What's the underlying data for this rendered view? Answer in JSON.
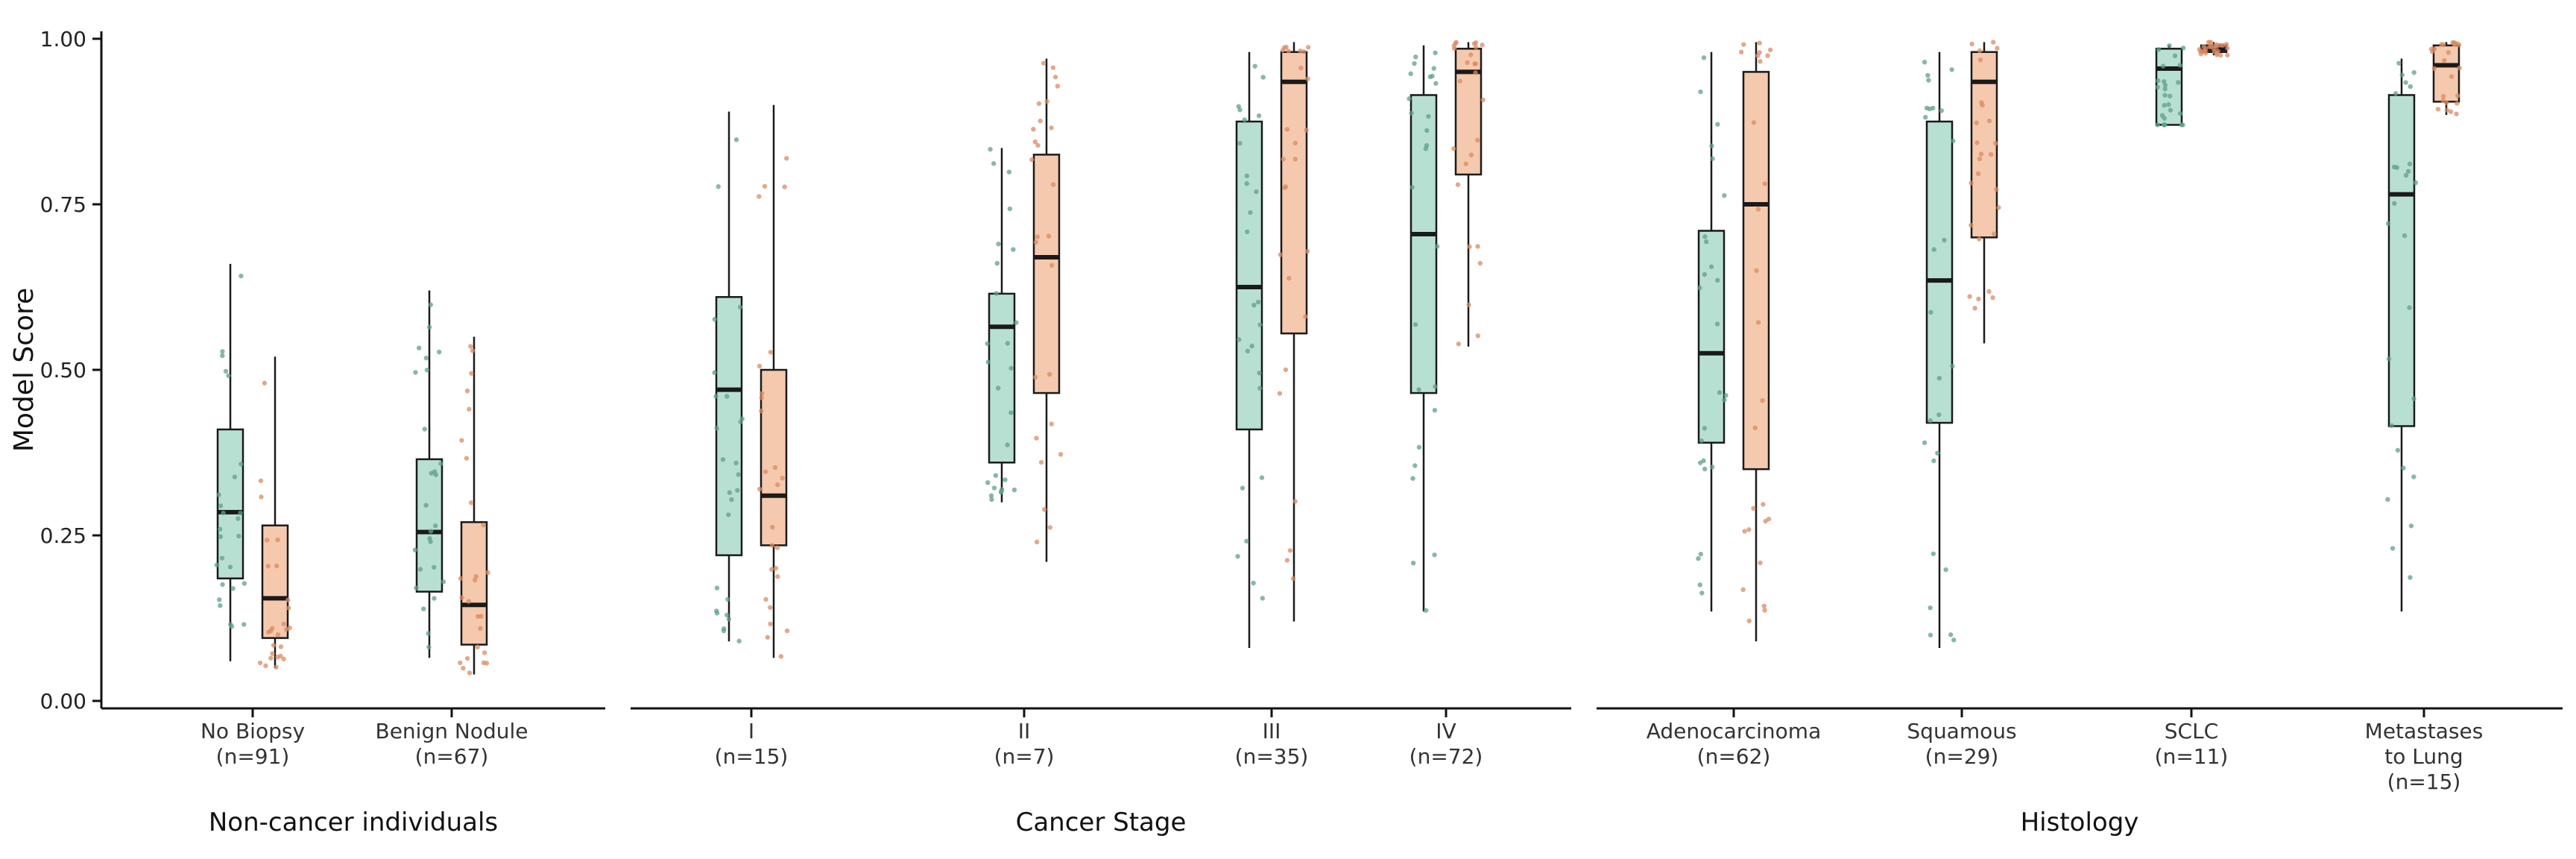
{
  "chart_data": {
    "type": "boxplot",
    "ylabel": "Model Score",
    "ylim": [
      0,
      1
    ],
    "yticks": [
      0.0,
      0.25,
      0.5,
      0.75,
      1.0
    ],
    "ytick_labels": [
      "0.00",
      "0.25",
      "0.50",
      "0.75",
      "1.00"
    ],
    "grid": false,
    "legend": "none",
    "colors": {
      "series_a_fill": "#b8e0d2",
      "series_a_point": "#5fa08a",
      "series_b_fill": "#f5c9ad",
      "series_b_point": "#d98b63",
      "box_stroke": "#1a1a1a",
      "axis": "#111111"
    },
    "facets": [
      {
        "label": "Non-cancer individuals",
        "categories": [
          {
            "label": [
              "No Biopsy",
              "(n=91)"
            ],
            "boxes": [
              {
                "series": "a",
                "min": 0.06,
                "q1": 0.185,
                "median": 0.285,
                "q3": 0.41,
                "max": 0.66
              },
              {
                "series": "b",
                "min": 0.05,
                "q1": 0.095,
                "median": 0.155,
                "q3": 0.265,
                "max": 0.52
              }
            ]
          },
          {
            "label": [
              "Benign Nodule",
              "(n=67)"
            ],
            "boxes": [
              {
                "series": "a",
                "min": 0.065,
                "q1": 0.165,
                "median": 0.255,
                "q3": 0.365,
                "max": 0.62
              },
              {
                "series": "b",
                "min": 0.04,
                "q1": 0.085,
                "median": 0.145,
                "q3": 0.27,
                "max": 0.55
              }
            ]
          }
        ]
      },
      {
        "label": "Cancer Stage",
        "categories": [
          {
            "label": [
              "I",
              "(n=15)"
            ],
            "boxes": [
              {
                "series": "a",
                "min": 0.09,
                "q1": 0.22,
                "median": 0.47,
                "q3": 0.61,
                "max": 0.89
              },
              {
                "series": "b",
                "min": 0.065,
                "q1": 0.235,
                "median": 0.31,
                "q3": 0.5,
                "max": 0.9
              }
            ]
          },
          {
            "label": [
              "II",
              "(n=7)"
            ],
            "boxes": [
              {
                "series": "a",
                "min": 0.3,
                "q1": 0.36,
                "median": 0.565,
                "q3": 0.615,
                "max": 0.835
              },
              {
                "series": "b",
                "min": 0.21,
                "q1": 0.465,
                "median": 0.67,
                "q3": 0.825,
                "max": 0.97
              }
            ]
          },
          {
            "label": [
              "III",
              "(n=35)"
            ],
            "boxes": [
              {
                "series": "a",
                "min": 0.08,
                "q1": 0.41,
                "median": 0.625,
                "q3": 0.875,
                "max": 0.98
              },
              {
                "series": "b",
                "min": 0.12,
                "q1": 0.555,
                "median": 0.935,
                "q3": 0.98,
                "max": 0.995
              }
            ]
          },
          {
            "label": [
              "IV",
              "(n=72)"
            ],
            "boxes": [
              {
                "series": "a",
                "min": 0.135,
                "q1": 0.465,
                "median": 0.705,
                "q3": 0.915,
                "max": 0.99
              },
              {
                "series": "b",
                "min": 0.535,
                "q1": 0.795,
                "median": 0.95,
                "q3": 0.985,
                "max": 0.995
              }
            ]
          }
        ]
      },
      {
        "label": "Histology",
        "categories": [
          {
            "label": [
              "Adenocarcinoma",
              "(n=62)"
            ],
            "boxes": [
              {
                "series": "a",
                "min": 0.135,
                "q1": 0.39,
                "median": 0.525,
                "q3": 0.71,
                "max": 0.98
              },
              {
                "series": "b",
                "min": 0.09,
                "q1": 0.35,
                "median": 0.75,
                "q3": 0.95,
                "max": 0.995
              }
            ]
          },
          {
            "label": [
              "Squamous",
              "(n=29)"
            ],
            "boxes": [
              {
                "series": "a",
                "min": 0.08,
                "q1": 0.42,
                "median": 0.635,
                "q3": 0.875,
                "max": 0.98
              },
              {
                "series": "b",
                "min": 0.54,
                "q1": 0.7,
                "median": 0.935,
                "q3": 0.98,
                "max": 0.995
              }
            ]
          },
          {
            "label": [
              "SCLC",
              "(n=11)"
            ],
            "boxes": [
              {
                "series": "a",
                "min": 0.87,
                "q1": 0.87,
                "median": 0.955,
                "q3": 0.985,
                "max": 0.99
              },
              {
                "series": "b",
                "min": 0.975,
                "q1": 0.98,
                "median": 0.985,
                "q3": 0.99,
                "max": 0.995
              }
            ]
          },
          {
            "label": [
              "Metastases",
              "to Lung",
              "(n=15)"
            ],
            "boxes": [
              {
                "series": "a",
                "min": 0.135,
                "q1": 0.415,
                "median": 0.765,
                "q3": 0.915,
                "max": 0.97
              },
              {
                "series": "b",
                "min": 0.885,
                "q1": 0.905,
                "median": 0.96,
                "q3": 0.99,
                "max": 0.995
              }
            ]
          }
        ]
      }
    ]
  }
}
